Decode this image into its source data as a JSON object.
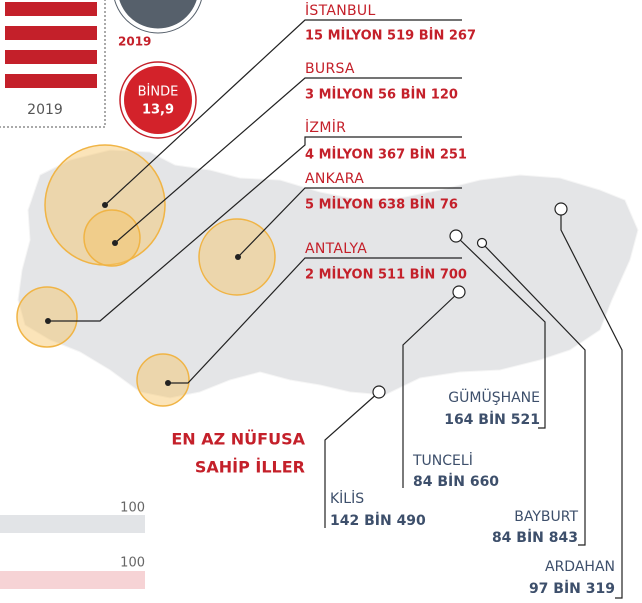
{
  "population_box": {
    "year": "2019"
  },
  "rate": {
    "year": "2019",
    "label": "BİNDE",
    "value": "13,9"
  },
  "largest_cities": [
    {
      "name": "İSTANBUL",
      "population": "15 MİLYON 519 BİN 267"
    },
    {
      "name": "BURSA",
      "population": "3 MİLYON 56 BİN 120"
    },
    {
      "name": "İZMİR",
      "population": "4 MİLYON 367 BİN 251"
    },
    {
      "name": "ANKARA",
      "population": "5 MİLYON 638 BİN 76"
    },
    {
      "name": "ANTALYA",
      "population": "2 MİLYON 511 BİN 700"
    }
  ],
  "headline": [
    "EN AZ NÜFUSA",
    "SAHİP İLLER"
  ],
  "smallest_cities": [
    {
      "name": "GÜMÜŞHANE",
      "population": "164 BİN 521"
    },
    {
      "name": "TUNCELİ",
      "population": "84 BİN 660"
    },
    {
      "name": "KİLİS",
      "population": "142 BİN 490"
    },
    {
      "name": "BAYBURT",
      "population": "84 BİN 843"
    },
    {
      "name": "ARDAHAN",
      "population": "97 BİN 319"
    }
  ],
  "bars": [
    {
      "label": "100"
    },
    {
      "label": "100"
    }
  ]
}
